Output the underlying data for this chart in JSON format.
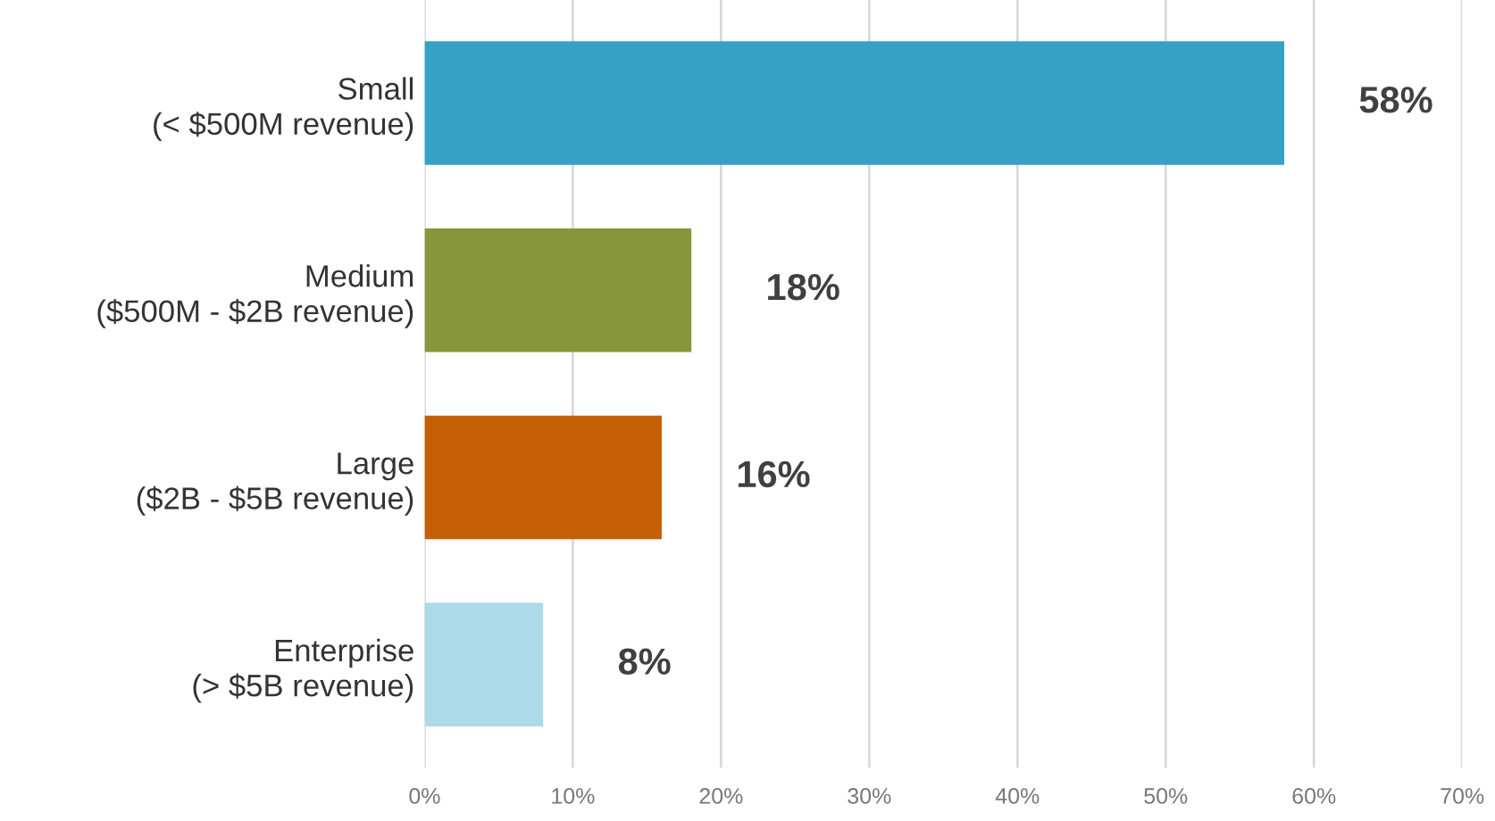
{
  "chart_data": {
    "type": "bar",
    "orientation": "horizontal",
    "categories": [
      "Small\n(< $500M revenue)",
      "Medium\n($500M - $2B revenue)",
      "Large\n($2B - $5B revenue)",
      "Enterprise\n(> $5B revenue)"
    ],
    "values": [
      58,
      18,
      16,
      8
    ],
    "colors": [
      "#35a1c5",
      "#87963b",
      "#c55f05",
      "#acdae8"
    ],
    "value_labels": [
      "58%",
      "18%",
      "16%",
      "8%"
    ],
    "xlim": [
      0,
      70
    ],
    "xticks": [
      {
        "value": 0,
        "label": "0%"
      },
      {
        "value": 10,
        "label": "10%"
      },
      {
        "value": 20,
        "label": "20%"
      },
      {
        "value": 30,
        "label": "30%"
      },
      {
        "value": 40,
        "label": "40%"
      },
      {
        "value": 50,
        "label": "50%"
      },
      {
        "value": 60,
        "label": "60%"
      },
      {
        "value": 70,
        "label": "70%"
      }
    ],
    "grid": "x"
  }
}
